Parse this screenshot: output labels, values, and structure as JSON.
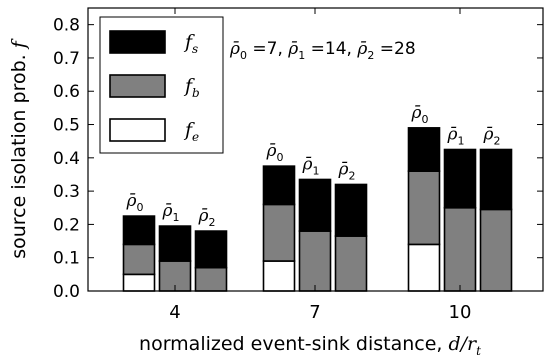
{
  "chart_data": {
    "type": "bar",
    "stacked": true,
    "title": "",
    "xlabel_text": "normalized event-sink distance, ",
    "xlabel_math_num": "d",
    "xlabel_math_den": "r",
    "xlabel_math_den_sub": "t",
    "ylabel_text": "source isolation prob. ",
    "ylabel_math": "f",
    "ylim": [
      0,
      0.85
    ],
    "yticks": [
      "0.0",
      "0.1",
      "0.2",
      "0.3",
      "0.4",
      "0.5",
      "0.6",
      "0.7",
      "0.8"
    ],
    "categories": [
      "4",
      "7",
      "10"
    ],
    "bar_labels": [
      "ρ̄0",
      "ρ̄1",
      "ρ̄2"
    ],
    "bar_label_base": "ρ̄",
    "bar_label_subs": [
      "0",
      "1",
      "2"
    ],
    "annotation": "ρ̄0 =7, ρ̄1 =14, ρ̄2 =28",
    "series": [
      {
        "name": "f_e",
        "label": "f",
        "sub": "e",
        "color": "#ffffff",
        "values": [
          [
            0.05,
            0.0,
            0.0
          ],
          [
            0.09,
            0.0,
            0.0
          ],
          [
            0.14,
            0.0,
            0.0
          ]
        ]
      },
      {
        "name": "f_b",
        "label": "f",
        "sub": "b",
        "color": "#808080",
        "values": [
          [
            0.09,
            0.09,
            0.07
          ],
          [
            0.17,
            0.18,
            0.165
          ],
          [
            0.22,
            0.25,
            0.245
          ]
        ]
      },
      {
        "name": "f_s",
        "label": "f",
        "sub": "s",
        "color": "#000000",
        "values": [
          [
            0.085,
            0.105,
            0.11
          ],
          [
            0.115,
            0.155,
            0.155
          ],
          [
            0.13,
            0.175,
            0.18
          ]
        ]
      }
    ],
    "legend_order": [
      "f_s",
      "f_b",
      "f_e"
    ],
    "legend_position": "top-left",
    "grid": false
  }
}
